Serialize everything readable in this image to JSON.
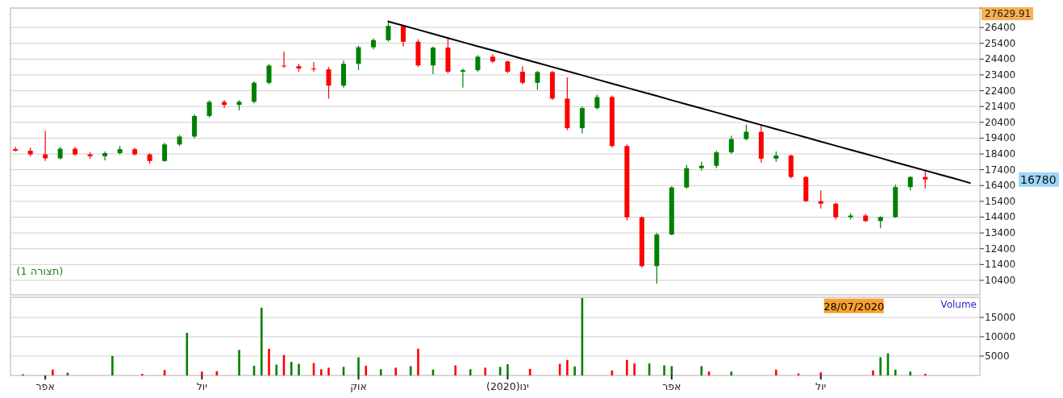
{
  "chart_data": [
    {
      "type": "candlestick",
      "categories": [
        null,
        null,
        null,
        null,
        null,
        null,
        null,
        null,
        null,
        null,
        null,
        null,
        null,
        null,
        null,
        null,
        null,
        null,
        null,
        null,
        null,
        null,
        null,
        null,
        null,
        null,
        null,
        null,
        null,
        null,
        null,
        null,
        null,
        null,
        null,
        null,
        null,
        null,
        null,
        null,
        null,
        null,
        null,
        null,
        null,
        null,
        null,
        null,
        null,
        null,
        null,
        null,
        null,
        null,
        null,
        null,
        null,
        null,
        null,
        null,
        null,
        null,
        null,
        null,
        null
      ],
      "ohlc": [
        [
          18700,
          18850,
          18550,
          18600
        ],
        [
          18600,
          18800,
          18250,
          18370
        ],
        [
          18370,
          19850,
          17950,
          18120
        ],
        [
          18120,
          18850,
          18050,
          18730
        ],
        [
          18730,
          18850,
          18300,
          18370
        ],
        [
          18370,
          18500,
          18100,
          18250
        ],
        [
          18250,
          18550,
          18000,
          18450
        ],
        [
          18450,
          18900,
          18350,
          18700
        ],
        [
          18700,
          18800,
          18300,
          18370
        ],
        [
          18370,
          18450,
          17800,
          17950
        ],
        [
          17950,
          19100,
          17900,
          19000
        ],
        [
          19000,
          19600,
          18900,
          19500
        ],
        [
          19500,
          20900,
          19400,
          20800
        ],
        [
          20800,
          21800,
          20700,
          21690
        ],
        [
          21690,
          21800,
          21300,
          21500
        ],
        [
          21500,
          21800,
          21150,
          21700
        ],
        [
          21700,
          23000,
          21600,
          22900
        ],
        [
          22900,
          24100,
          22800,
          23990
        ],
        [
          23990,
          24860,
          23850,
          23950
        ],
        [
          23950,
          24100,
          23600,
          23800
        ],
        [
          23800,
          24200,
          23600,
          23750
        ],
        [
          23750,
          23900,
          21900,
          22720
        ],
        [
          22720,
          24300,
          22600,
          24100
        ],
        [
          24100,
          25250,
          23700,
          25150
        ],
        [
          25150,
          25700,
          25000,
          25600
        ],
        [
          25600,
          26850,
          25500,
          26500
        ],
        [
          26500,
          26550,
          25200,
          25500
        ],
        [
          25500,
          25650,
          23900,
          24000
        ],
        [
          24000,
          25200,
          23450,
          25120
        ],
        [
          25120,
          25800,
          23500,
          23600
        ],
        [
          23600,
          23800,
          22600,
          23700
        ],
        [
          23700,
          24650,
          23600,
          24550
        ],
        [
          24550,
          24700,
          24150,
          24250
        ],
        [
          24250,
          24300,
          23500,
          23600
        ],
        [
          23600,
          23950,
          22800,
          22900
        ],
        [
          22900,
          23650,
          22450,
          23580
        ],
        [
          23580,
          23650,
          21800,
          21900
        ],
        [
          21900,
          23250,
          19900,
          20030
        ],
        [
          20030,
          21400,
          19700,
          21300
        ],
        [
          21300,
          22150,
          21200,
          22000
        ],
        [
          22000,
          22100,
          18800,
          18900
        ],
        [
          18900,
          19000,
          14200,
          14390
        ],
        [
          14390,
          14450,
          11200,
          11300
        ],
        [
          11300,
          13400,
          10200,
          13300
        ],
        [
          13300,
          16350,
          13250,
          16280
        ],
        [
          16280,
          17700,
          16200,
          17500
        ],
        [
          17500,
          17900,
          17350,
          17650
        ],
        [
          17650,
          18600,
          17500,
          18500
        ],
        [
          18500,
          19550,
          18400,
          19340
        ],
        [
          19340,
          20250,
          19250,
          19800
        ],
        [
          19800,
          20200,
          17850,
          18100
        ],
        [
          18100,
          18550,
          17900,
          18300
        ],
        [
          18300,
          18350,
          16850,
          16940
        ],
        [
          16940,
          17000,
          15350,
          15410
        ],
        [
          15410,
          16100,
          14950,
          15250
        ],
        [
          15250,
          15300,
          14250,
          14390
        ],
        [
          14390,
          14650,
          14250,
          14500
        ],
        [
          14500,
          14600,
          14100,
          14150
        ],
        [
          14150,
          14450,
          13700,
          14400
        ],
        [
          14400,
          16450,
          14350,
          16300
        ],
        [
          16300,
          17000,
          16100,
          16940
        ],
        [
          16940,
          17350,
          16210,
          16780
        ],
        null,
        null,
        null
      ],
      "colors": [
        "#ff0000",
        "#ff0000",
        "#ff0000",
        "#008000",
        "#ff0000",
        "#ff0000",
        "#008000",
        "#008000",
        "#ff0000",
        "#ff0000",
        "#008000",
        "#008000",
        "#008000",
        "#008000",
        "#ff0000",
        "#008000",
        "#008000",
        "#008000",
        "#ff0000",
        "#ff0000",
        "#ff0000",
        "#ff0000",
        "#008000",
        "#008000",
        "#008000",
        "#008000",
        "#ff0000",
        "#ff0000",
        "#008000",
        "#ff0000",
        "#008000",
        "#008000",
        "#ff0000",
        "#ff0000",
        "#ff0000",
        "#008000",
        "#ff0000",
        "#ff0000",
        "#008000",
        "#008000",
        "#ff0000",
        "#ff0000",
        "#ff0000",
        "#008000",
        "#008000",
        "#008000",
        "#008000",
        "#008000",
        "#008000",
        "#008000",
        "#ff0000",
        "#008000",
        "#ff0000",
        "#ff0000",
        "#ff0000",
        "#ff0000",
        "#008000",
        "#ff0000",
        "#008000",
        "#008000",
        "#008000",
        "#ff0000",
        null,
        null,
        null
      ],
      "series": [
        {
          "type": "line",
          "color": "#000000",
          "values": [
            null,
            null,
            null,
            null,
            null,
            null,
            null,
            null,
            null,
            null,
            null,
            null,
            null,
            null,
            null,
            null,
            null,
            null,
            null,
            null,
            null,
            null,
            null,
            null,
            null,
            26780,
            26520,
            26260,
            26000,
            25730,
            25470,
            25210,
            24950,
            24690,
            24420,
            24160,
            23900,
            23640,
            23380,
            23110,
            22850,
            22590,
            22330,
            22070,
            21800,
            21540,
            21280,
            21020,
            20760,
            20490,
            20230,
            19970,
            19710,
            19450,
            19180,
            18920,
            18660,
            18400,
            18140,
            17870,
            17610,
            17350,
            17090,
            16830,
            16560
          ]
        }
      ],
      "ylim": [
        9480,
        27629.91
      ],
      "yticks": [
        10400,
        11400,
        12400,
        13400,
        14400,
        15400,
        16400,
        17400,
        18400,
        19400,
        20400,
        21400,
        22400,
        23400,
        24400,
        25400,
        26400,
        27629.91
      ],
      "grid": "y",
      "tick_labels": "y",
      "annotations": [
        "(תצורה 1)",
        "16780"
      ]
    },
    {
      "type": "bar",
      "title": "Volume",
      "categories": [
        null,
        null,
        null,
        null,
        "אפר",
        null,
        null,
        null,
        null,
        null,
        null,
        null,
        null,
        null,
        null,
        null,
        null,
        null,
        null,
        null,
        null,
        null,
        null,
        null,
        null,
        "יול",
        null,
        null,
        null,
        null,
        null,
        null,
        null,
        null,
        null,
        null,
        null,
        null,
        null,
        null,
        null,
        null,
        null,
        null,
        null,
        null,
        "אוק",
        null,
        null,
        null,
        null,
        null,
        null,
        null,
        null,
        null,
        null,
        null,
        null,
        null,
        null,
        null,
        null,
        null,
        null,
        null,
        "ינו(2020)",
        null,
        null,
        null,
        null,
        null,
        null,
        null,
        null,
        null,
        null,
        null,
        null,
        null,
        null,
        null,
        null,
        null,
        null,
        null,
        null,
        null,
        "אפר",
        null,
        null,
        null,
        null,
        null,
        null,
        null,
        null,
        null,
        null,
        null,
        null,
        null,
        null,
        null,
        null,
        null,
        null,
        null,
        "יול",
        null,
        null,
        null,
        null,
        null,
        null,
        null,
        null,
        null,
        null,
        null,
        null,
        null,
        null,
        null,
        null,
        null,
        null,
        null,
        null
      ],
      "values": [
        null,
        300,
        null,
        null,
        null,
        1500,
        null,
        700,
        null,
        null,
        null,
        null,
        null,
        5000,
        null,
        null,
        null,
        400,
        null,
        null,
        1400,
        null,
        null,
        11000,
        null,
        1000,
        null,
        1100,
        null,
        null,
        6600,
        null,
        2500,
        17500,
        6900,
        2800,
        5300,
        3500,
        3000,
        null,
        3200,
        1600,
        2000,
        null,
        2200,
        null,
        4700,
        2500,
        null,
        1600,
        null,
        2000,
        null,
        2400,
        6900,
        null,
        1500,
        null,
        null,
        2600,
        null,
        1600,
        null,
        2000,
        null,
        2200,
        2900,
        null,
        null,
        1700,
        null,
        null,
        null,
        3000,
        4000,
        2300,
        20000,
        null,
        null,
        null,
        1300,
        null,
        4000,
        3100,
        null,
        3100,
        null,
        2600,
        2400,
        null,
        null,
        null,
        2400,
        1000,
        null,
        null,
        1000,
        null,
        null,
        null,
        null,
        null,
        1500,
        null,
        null,
        500,
        null,
        null,
        800,
        null,
        null,
        null,
        null,
        null,
        null,
        1300,
        4700,
        5700,
        1500,
        null,
        1000,
        null,
        400,
        null,
        null,
        null,
        null,
        null,
        null
      ],
      "colors": [
        null,
        "#008000",
        null,
        null,
        null,
        "#ff0000",
        null,
        "#008000",
        null,
        null,
        null,
        null,
        null,
        "#008000",
        null,
        null,
        null,
        "#ff0000",
        null,
        null,
        "#ff0000",
        null,
        null,
        "#008000",
        null,
        "#ff0000",
        null,
        "#ff0000",
        null,
        null,
        "#008000",
        null,
        "#008000",
        "#008000",
        "#ff0000",
        "#008000",
        "#ff0000",
        "#008000",
        "#008000",
        null,
        "#ff0000",
        "#ff0000",
        "#ff0000",
        null,
        "#008000",
        null,
        "#008000",
        "#ff0000",
        null,
        "#008000",
        null,
        "#ff0000",
        null,
        "#008000",
        "#ff0000",
        null,
        "#008000",
        null,
        null,
        "#ff0000",
        null,
        "#008000",
        null,
        "#ff0000",
        null,
        "#008000",
        "#008000",
        null,
        null,
        "#ff0000",
        null,
        null,
        null,
        "#ff0000",
        "#ff0000",
        "#008000",
        "#008000",
        null,
        null,
        null,
        "#ff0000",
        null,
        "#ff0000",
        "#ff0000",
        null,
        "#008000",
        null,
        "#008000",
        "#008000",
        null,
        null,
        null,
        "#008000",
        "#ff0000",
        null,
        null,
        "#008000",
        null,
        null,
        null,
        null,
        null,
        "#ff0000",
        null,
        null,
        "#ff0000",
        null,
        null,
        "#ff0000",
        null,
        null,
        null,
        null,
        null,
        null,
        "#ff0000",
        "#008000",
        "#008000",
        "#008000",
        null,
        "#008000",
        null,
        "#ff0000",
        null,
        null,
        null,
        null,
        null,
        null
      ],
      "ylim": [
        0,
        20200
      ],
      "yticks": [
        5000,
        10000,
        15000
      ],
      "grid": "y",
      "annotations": [
        "28/07/2020"
      ]
    }
  ]
}
